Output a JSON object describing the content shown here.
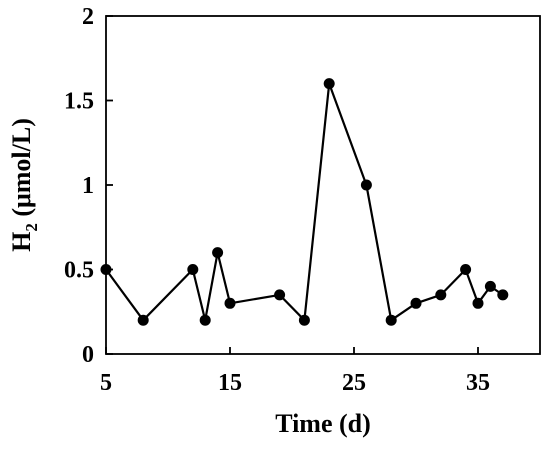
{
  "chart_data": {
    "type": "line",
    "xlabel": "Time (d)",
    "ylabel": "H2 (μmol/L)",
    "ylabel_parts": {
      "prefix": "H",
      "subscript": "2",
      "suffix": " (μmol/L)"
    },
    "xlim": [
      5,
      40
    ],
    "ylim": [
      0,
      2
    ],
    "x_ticks": [
      5,
      15,
      25,
      35
    ],
    "y_ticks": [
      0,
      0.5,
      1,
      1.5,
      2
    ],
    "x_tick_labels": [
      "5",
      "15",
      "25",
      "35"
    ],
    "y_tick_labels": [
      "0",
      "0.5",
      "1",
      "1.5",
      "2"
    ],
    "grid": false,
    "series": [
      {
        "x": [
          5,
          8,
          12,
          13,
          14,
          15,
          19,
          21,
          23,
          26,
          28,
          30,
          32,
          34,
          35,
          36,
          37
        ],
        "y": [
          0.5,
          0.2,
          0.5,
          0.2,
          0.6,
          0.3,
          0.35,
          0.2,
          1.6,
          1.0,
          0.2,
          0.3,
          0.35,
          0.5,
          0.3,
          0.4,
          0.35
        ],
        "color": "#000000",
        "marker": "circle"
      }
    ]
  }
}
